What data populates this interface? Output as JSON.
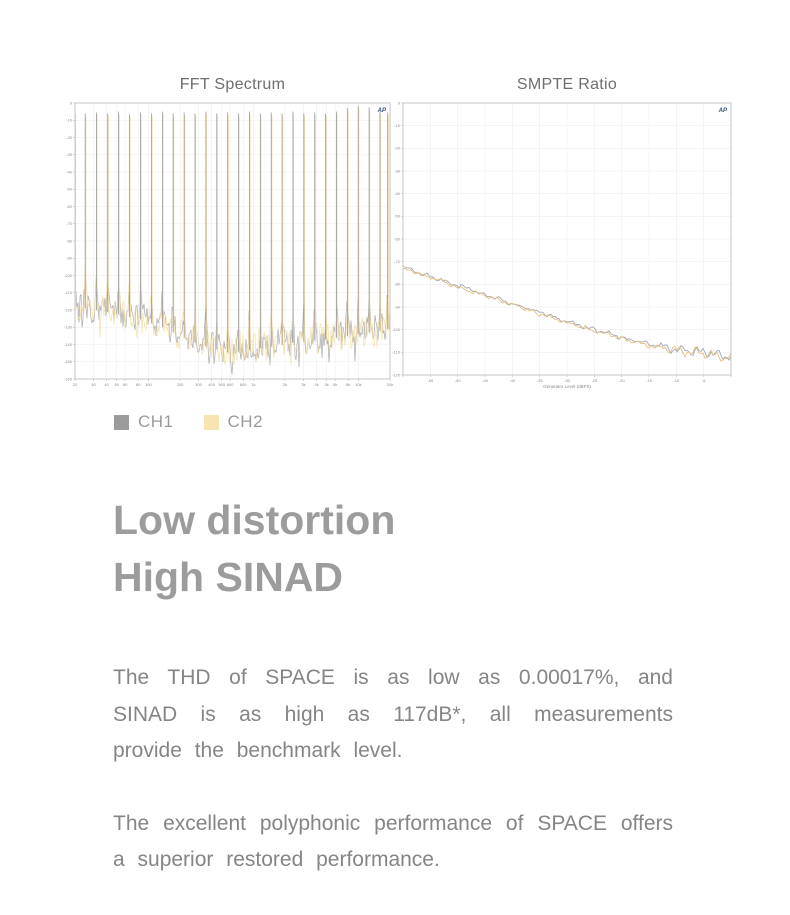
{
  "chart_data": [
    {
      "type": "fft_spectrum",
      "title": "FFT Spectrum",
      "logo": "AP",
      "xscale": "log",
      "xlim": [
        20,
        20000
      ],
      "ylim": [
        0,
        -160
      ],
      "x_ticks": [
        "20",
        "30",
        "40",
        "50",
        "60",
        "80",
        "100",
        "200",
        "300",
        "400",
        "500",
        "600",
        "800",
        "1k",
        "2k",
        "3k",
        "4k",
        "5k",
        "6k",
        "8k",
        "10k",
        "20k"
      ],
      "x_tick_values": [
        20,
        30,
        40,
        50,
        60,
        80,
        100,
        200,
        300,
        400,
        500,
        600,
        800,
        1000,
        2000,
        3000,
        4000,
        5000,
        6000,
        8000,
        10000,
        20000
      ],
      "y_ticks": [
        0,
        -10,
        -20,
        -30,
        -40,
        -50,
        -60,
        -70,
        -80,
        -90,
        -100,
        -110,
        -120,
        -130,
        -140,
        -150,
        -160
      ],
      "tones": [
        [
          20,
          -5
        ],
        [
          25,
          -6
        ],
        [
          32,
          -5.5
        ],
        [
          41,
          -6
        ],
        [
          52,
          -5
        ],
        [
          66,
          -6.5
        ],
        [
          84,
          -5.5
        ],
        [
          107,
          -6
        ],
        [
          136,
          -5
        ],
        [
          172,
          -6
        ],
        [
          219,
          -5.5
        ],
        [
          278,
          -6
        ],
        [
          353,
          -5
        ],
        [
          448,
          -6
        ],
        [
          569,
          -5.5
        ],
        [
          722,
          -6
        ],
        [
          917,
          -5
        ],
        [
          1164,
          -6
        ],
        [
          1478,
          -5.5
        ],
        [
          1876,
          -6
        ],
        [
          2381,
          -5
        ],
        [
          3023,
          -6
        ],
        [
          3837,
          -5.5
        ],
        [
          4871,
          -6
        ],
        [
          6183,
          -5
        ],
        [
          7849,
          -3
        ],
        [
          9963,
          -1.5
        ],
        [
          12646,
          -2.5
        ],
        [
          16053,
          -5
        ],
        [
          19000,
          -5.5
        ]
      ],
      "noise_floor": [
        [
          20,
          -117
        ],
        [
          40,
          -120
        ],
        [
          80,
          -124
        ],
        [
          150,
          -130
        ],
        [
          300,
          -139
        ],
        [
          600,
          -144
        ],
        [
          1200,
          -141
        ],
        [
          2500,
          -138
        ],
        [
          5000,
          -136
        ],
        [
          10000,
          -133
        ],
        [
          20000,
          -130
        ]
      ],
      "noise_jitter_db": 9,
      "series": [
        {
          "name": "CH1",
          "color": "#9b9b9b"
        },
        {
          "name": "CH2",
          "color": "#f2dda4"
        }
      ]
    },
    {
      "type": "line",
      "title": "SMPTE Ratio",
      "logo": "AP",
      "xlabel": "Generator Level (dBFS)",
      "xlim": [
        -60,
        0
      ],
      "ylim": [
        0,
        -120
      ],
      "x_ticks": [
        -55,
        -50,
        -45,
        -40,
        -35,
        -30,
        -25,
        -20,
        -15,
        -10,
        -5
      ],
      "y_ticks": [
        0,
        -10,
        -20,
        -30,
        -40,
        -50,
        -60,
        -70,
        -80,
        -90,
        -100,
        -110,
        -120
      ],
      "jitter_db": 0.9,
      "end_jitter_db": 2.4,
      "series": [
        {
          "name": "CH1",
          "color": "#9aa3b2",
          "points": [
            [
              -60,
              -72.5
            ],
            [
              -55,
              -76.5
            ],
            [
              -50,
              -80.5
            ],
            [
              -45,
              -84.5
            ],
            [
              -40,
              -88.5
            ],
            [
              -35,
              -92.5
            ],
            [
              -30,
              -96.5
            ],
            [
              -25,
              -100
            ],
            [
              -20,
              -103.5
            ],
            [
              -15,
              -106.5
            ],
            [
              -10,
              -108.5
            ],
            [
              -5,
              -110
            ],
            [
              0,
              -112
            ]
          ]
        },
        {
          "name": "CH2",
          "color": "#e3bd7a",
          "points": [
            [
              -60,
              -73
            ],
            [
              -55,
              -77
            ],
            [
              -50,
              -81
            ],
            [
              -45,
              -85
            ],
            [
              -40,
              -89
            ],
            [
              -35,
              -93
            ],
            [
              -30,
              -97
            ],
            [
              -25,
              -100.5
            ],
            [
              -20,
              -104
            ],
            [
              -15,
              -107
            ],
            [
              -10,
              -109
            ],
            [
              -5,
              -110.5
            ],
            [
              0,
              -112.5
            ]
          ]
        }
      ]
    }
  ],
  "legend": {
    "items": [
      {
        "label": "CH1",
        "color": "#9b9b9b"
      },
      {
        "label": "CH2",
        "color": "#f8e4b0"
      }
    ]
  },
  "heading": {
    "line1": "Low distortion",
    "line2": "High SINAD"
  },
  "paragraphs": [
    "The THD of SPACE is as low as 0.00017%, and SINAD is as high as 117dB*, all measurements provide the benchmark level.",
    "The excellent polyphonic performance of SPACE offers a superior restored performance."
  ]
}
